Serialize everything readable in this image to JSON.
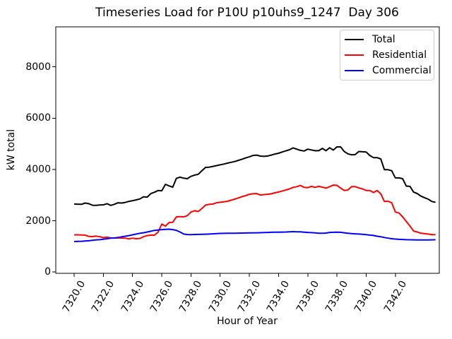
{
  "chart_data": {
    "type": "line",
    "title": "Timeseries Load for P10U p10uhs9_1247  Day 306",
    "xlabel": "Hour of Year",
    "ylabel": "kW total",
    "grid": false,
    "legend_position": "upper right",
    "xlim": [
      7318.74,
      7345.01
    ],
    "ylim": [
      -50,
      9560
    ],
    "x_tick_values": [
      7320,
      7322,
      7324,
      7326,
      7328,
      7330,
      7332,
      7334,
      7336,
      7338,
      7340,
      7342
    ],
    "x_tick_labels": [
      "7320.0",
      "7322.0",
      "7324.0",
      "7326.0",
      "7328.0",
      "7330.0",
      "7332.0",
      "7334.0",
      "7336.0",
      "7338.0",
      "7340.0",
      "7342.0"
    ],
    "y_tick_values": [
      0,
      2000,
      4000,
      6000,
      8000
    ],
    "y_tick_labels": [
      "0",
      "2000",
      "4000",
      "6000",
      "8000"
    ],
    "x_start": 7320.0,
    "x_step": 0.25,
    "series": [
      {
        "name": "Total",
        "color": "#000000",
        "values": [
          2650,
          2645,
          2640,
          2690,
          2665,
          2605,
          2600,
          2615,
          2620,
          2665,
          2600,
          2640,
          2700,
          2690,
          2715,
          2755,
          2780,
          2815,
          2850,
          2935,
          2920,
          3060,
          3110,
          3180,
          3170,
          3420,
          3360,
          3310,
          3650,
          3700,
          3660,
          3640,
          3730,
          3780,
          3810,
          3950,
          4080,
          4090,
          4120,
          4150,
          4180,
          4210,
          4245,
          4280,
          4310,
          4355,
          4400,
          4450,
          4490,
          4545,
          4560,
          4520,
          4510,
          4525,
          4560,
          4600,
          4630,
          4680,
          4725,
          4770,
          4840,
          4790,
          4745,
          4720,
          4790,
          4760,
          4730,
          4730,
          4820,
          4730,
          4845,
          4755,
          4880,
          4880,
          4700,
          4610,
          4570,
          4580,
          4700,
          4690,
          4680,
          4545,
          4460,
          4460,
          4410,
          3990,
          3990,
          3950,
          3670,
          3670,
          3640,
          3350,
          3340,
          3120,
          3060,
          2960,
          2900,
          2840,
          2750,
          2720
        ]
      },
      {
        "name": "Residential",
        "color": "#ff0000",
        "values": [
          1450,
          1450,
          1445,
          1440,
          1390,
          1382,
          1400,
          1375,
          1340,
          1360,
          1330,
          1325,
          1330,
          1325,
          1320,
          1290,
          1320,
          1300,
          1310,
          1380,
          1420,
          1440,
          1438,
          1560,
          1870,
          1790,
          1930,
          1940,
          2150,
          2160,
          2150,
          2200,
          2340,
          2390,
          2360,
          2480,
          2610,
          2640,
          2650,
          2700,
          2720,
          2740,
          2760,
          2800,
          2840,
          2890,
          2940,
          2980,
          3030,
          3050,
          3060,
          3000,
          3020,
          3030,
          3050,
          3090,
          3120,
          3160,
          3200,
          3240,
          3300,
          3330,
          3375,
          3300,
          3290,
          3340,
          3300,
          3340,
          3310,
          3270,
          3330,
          3390,
          3380,
          3270,
          3180,
          3200,
          3330,
          3330,
          3280,
          3240,
          3180,
          3180,
          3100,
          3180,
          3050,
          2750,
          2760,
          2700,
          2340,
          2300,
          2150,
          1970,
          1790,
          1600,
          1560,
          1510,
          1500,
          1480,
          1460,
          1460
        ]
      },
      {
        "name": "Commercial",
        "color": "#0000ff",
        "values": [
          1190,
          1195,
          1200,
          1210,
          1220,
          1240,
          1255,
          1262,
          1280,
          1300,
          1318,
          1330,
          1345,
          1372,
          1395,
          1420,
          1450,
          1480,
          1510,
          1530,
          1560,
          1590,
          1625,
          1640,
          1655,
          1665,
          1670,
          1655,
          1625,
          1560,
          1480,
          1462,
          1460,
          1465,
          1468,
          1470,
          1475,
          1480,
          1490,
          1500,
          1505,
          1508,
          1510,
          1512,
          1515,
          1518,
          1520,
          1522,
          1525,
          1528,
          1530,
          1532,
          1540,
          1545,
          1550,
          1552,
          1555,
          1558,
          1560,
          1568,
          1575,
          1570,
          1565,
          1555,
          1545,
          1535,
          1525,
          1515,
          1510,
          1520,
          1545,
          1550,
          1555,
          1550,
          1530,
          1510,
          1500,
          1490,
          1480,
          1470,
          1455,
          1440,
          1425,
          1395,
          1375,
          1345,
          1320,
          1300,
          1285,
          1275,
          1268,
          1262,
          1258,
          1255,
          1252,
          1250,
          1250,
          1250,
          1255,
          1260
        ]
      }
    ]
  }
}
